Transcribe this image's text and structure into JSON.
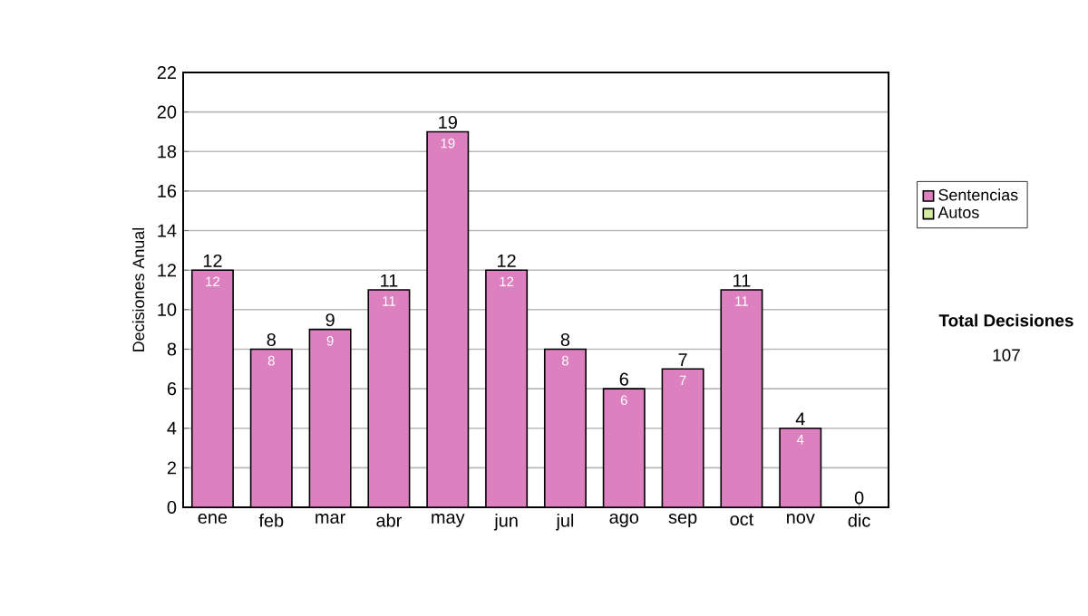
{
  "chart_data": {
    "type": "bar",
    "stacked": true,
    "ylabel": "Decisiones Anual",
    "categories": [
      "ene",
      "feb",
      "mar",
      "abr",
      "may",
      "jun",
      "jul",
      "ago",
      "sep",
      "oct",
      "nov",
      "dic"
    ],
    "series": [
      {
        "name": "Sentencias",
        "color": "#dd80c0",
        "values": [
          12,
          8,
          9,
          11,
          19,
          12,
          8,
          6,
          7,
          11,
          4,
          0
        ],
        "value_labels": [
          "12",
          "8",
          "9",
          "11",
          "19",
          "12",
          "8",
          "6",
          "7",
          "11",
          "4",
          null
        ]
      },
      {
        "name": "Autos",
        "color": "#d4eca0",
        "values": [
          0,
          0,
          0,
          0,
          0,
          0,
          0,
          0,
          0,
          0,
          0,
          0
        ]
      }
    ],
    "totals": [
      "12",
      "8",
      "9",
      "11",
      "19",
      "12",
      "8",
      "6",
      "7",
      "11",
      "4",
      "0"
    ],
    "ylim": [
      0,
      22
    ],
    "yticks": [
      0,
      2,
      4,
      6,
      8,
      10,
      12,
      14,
      16,
      18,
      20,
      22
    ],
    "grid": "y",
    "legend": "right",
    "annotations": [
      "**Total Decisiones**",
      "107"
    ]
  }
}
